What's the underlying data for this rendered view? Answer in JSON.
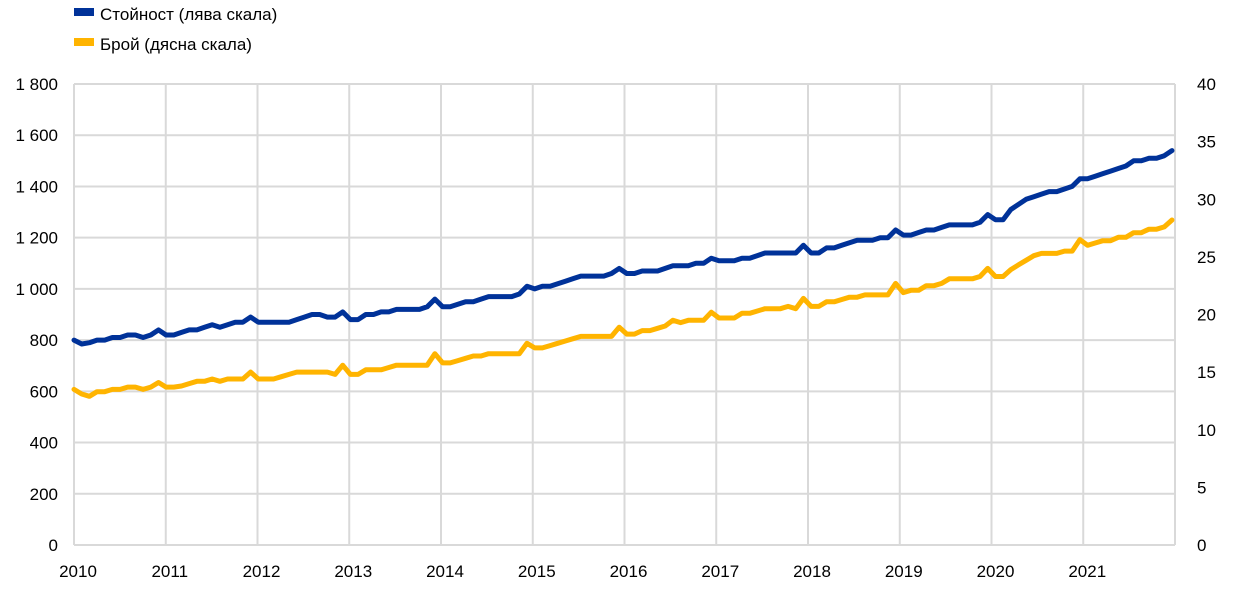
{
  "chart_data": {
    "type": "line",
    "title": "",
    "legend_position": "top-left",
    "grid": true,
    "x_tick_labels": [
      "2010",
      "2011",
      "2012",
      "2013",
      "2014",
      "2015",
      "2016",
      "2017",
      "2018",
      "2019",
      "2020",
      "2021"
    ],
    "x_range": [
      2010,
      2022
    ],
    "left_axis": {
      "ylim": [
        0,
        1800
      ],
      "ticks": [
        0,
        200,
        400,
        600,
        800,
        1000,
        1200,
        1400,
        1600,
        1800
      ],
      "tick_labels": [
        "0",
        "200",
        "400",
        "600",
        "800",
        "1 000",
        "1 200",
        "1 400",
        "1 600",
        "1 800"
      ]
    },
    "right_axis": {
      "ylim": [
        0,
        40
      ],
      "ticks": [
        0,
        5,
        10,
        15,
        20,
        25,
        30,
        35,
        40
      ],
      "tick_labels": [
        "0",
        "5",
        "10",
        "15",
        "20",
        "25",
        "30",
        "35",
        "40"
      ]
    },
    "frequency": "monthly",
    "series": [
      {
        "name": "Стойност (лява скала)",
        "axis": "left",
        "color": "#003299",
        "values": [
          800,
          785,
          790,
          800,
          800,
          810,
          810,
          820,
          820,
          810,
          820,
          840,
          820,
          820,
          830,
          840,
          840,
          850,
          860,
          850,
          860,
          870,
          870,
          890,
          870,
          870,
          870,
          870,
          870,
          880,
          890,
          900,
          900,
          890,
          890,
          910,
          880,
          880,
          900,
          900,
          910,
          910,
          920,
          920,
          920,
          920,
          930,
          960,
          930,
          930,
          940,
          950,
          950,
          960,
          970,
          970,
          970,
          970,
          980,
          1010,
          1000,
          1010,
          1010,
          1020,
          1030,
          1040,
          1050,
          1050,
          1050,
          1050,
          1060,
          1080,
          1060,
          1060,
          1070,
          1070,
          1070,
          1080,
          1090,
          1090,
          1090,
          1100,
          1100,
          1120,
          1110,
          1110,
          1110,
          1120,
          1120,
          1130,
          1140,
          1140,
          1140,
          1140,
          1140,
          1170,
          1140,
          1140,
          1160,
          1160,
          1170,
          1180,
          1190,
          1190,
          1190,
          1200,
          1200,
          1230,
          1210,
          1210,
          1220,
          1230,
          1230,
          1240,
          1250,
          1250,
          1250,
          1250,
          1260,
          1290,
          1270,
          1270,
          1310,
          1330,
          1350,
          1360,
          1370,
          1380,
          1380,
          1390,
          1400,
          1430,
          1430,
          1440,
          1450,
          1460,
          1470,
          1480,
          1500,
          1500,
          1510,
          1510,
          1520,
          1540
        ]
      },
      {
        "name": "Брой (дясна скала)",
        "axis": "right",
        "color": "#FFB400",
        "values": [
          13.5,
          13.1,
          12.9,
          13.3,
          13.3,
          13.5,
          13.5,
          13.7,
          13.7,
          13.5,
          13.7,
          14.1,
          13.7,
          13.7,
          13.8,
          14.0,
          14.2,
          14.2,
          14.4,
          14.2,
          14.4,
          14.4,
          14.4,
          15.0,
          14.4,
          14.4,
          14.4,
          14.6,
          14.8,
          15.0,
          15.0,
          15.0,
          15.0,
          15.0,
          14.8,
          15.6,
          14.8,
          14.8,
          15.2,
          15.2,
          15.2,
          15.4,
          15.6,
          15.6,
          15.6,
          15.6,
          15.6,
          16.6,
          15.8,
          15.8,
          16.0,
          16.2,
          16.4,
          16.4,
          16.6,
          16.6,
          16.6,
          16.6,
          16.6,
          17.5,
          17.1,
          17.1,
          17.3,
          17.5,
          17.7,
          17.9,
          18.1,
          18.1,
          18.1,
          18.1,
          18.1,
          18.9,
          18.3,
          18.3,
          18.6,
          18.6,
          18.8,
          19.0,
          19.5,
          19.3,
          19.5,
          19.5,
          19.5,
          20.2,
          19.7,
          19.7,
          19.7,
          20.1,
          20.1,
          20.3,
          20.5,
          20.5,
          20.5,
          20.7,
          20.5,
          21.4,
          20.7,
          20.7,
          21.1,
          21.1,
          21.3,
          21.5,
          21.5,
          21.7,
          21.7,
          21.7,
          21.7,
          22.7,
          21.9,
          22.1,
          22.1,
          22.5,
          22.5,
          22.7,
          23.1,
          23.1,
          23.1,
          23.1,
          23.3,
          24.0,
          23.3,
          23.3,
          23.9,
          24.3,
          24.7,
          25.1,
          25.3,
          25.3,
          25.3,
          25.5,
          25.5,
          26.5,
          26.0,
          26.2,
          26.4,
          26.4,
          26.7,
          26.7,
          27.1,
          27.1,
          27.4,
          27.4,
          27.6,
          28.2
        ]
      }
    ]
  }
}
